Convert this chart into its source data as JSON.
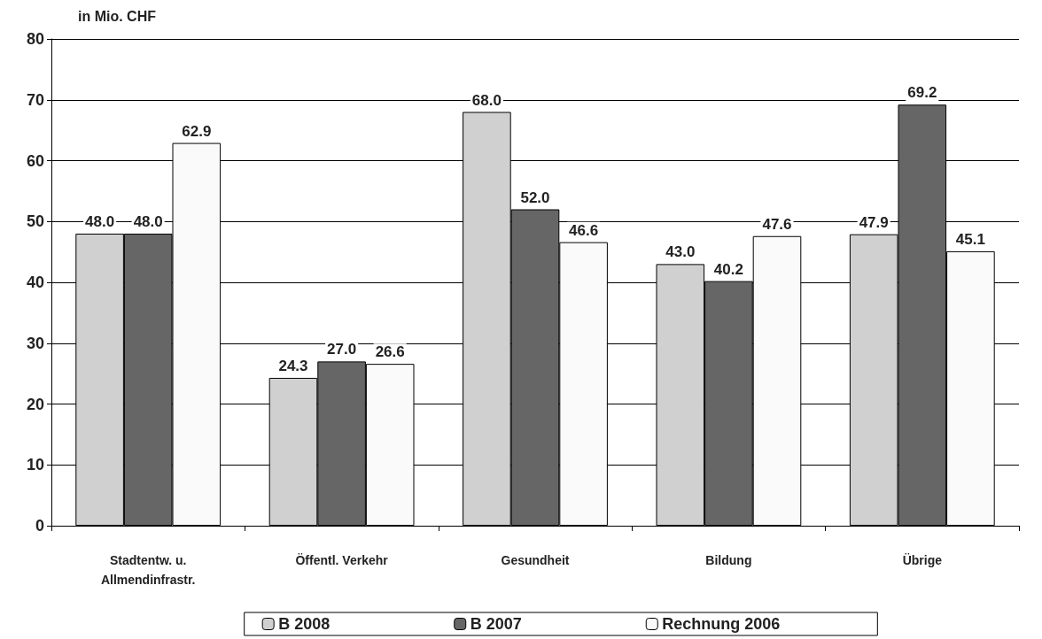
{
  "chart_data": {
    "type": "bar",
    "ylabel": "in Mio. CHF",
    "categories": [
      "Stadtentw. u.\nAllmendinfrastr.",
      "Öffentl. Verkehr",
      "Gesundheit",
      "Bildung",
      "Übrige"
    ],
    "series": [
      {
        "name": "B 2008",
        "color": "#d0d0d0",
        "values": [
          48.0,
          24.3,
          68.0,
          43.0,
          47.9
        ],
        "value_labels": [
          "48.0",
          "24.3",
          "68.0",
          "43.0",
          "47.9"
        ]
      },
      {
        "name": "B 2007",
        "color": "#666666",
        "values": [
          48.0,
          27.0,
          52.0,
          40.2,
          69.2
        ],
        "value_labels": [
          "48.0",
          "27.0",
          "52.0",
          "40.2",
          "69.2"
        ]
      },
      {
        "name": "Rechnung 2006",
        "color": "#fafafa",
        "values": [
          62.9,
          26.6,
          46.6,
          47.6,
          45.1
        ],
        "value_labels": [
          "62.9",
          "26.6",
          "46.6",
          "47.6",
          "45.1"
        ]
      }
    ],
    "ylim": [
      0,
      80
    ],
    "yticks": [
      0,
      10,
      20,
      30,
      40,
      50,
      60,
      70,
      80
    ],
    "grid": "y",
    "legend": "bottom"
  }
}
